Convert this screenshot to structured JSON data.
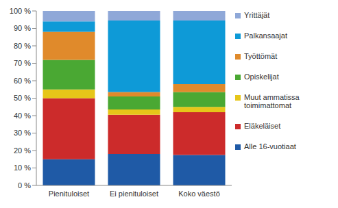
{
  "chart_data": {
    "type": "bar",
    "stacked": true,
    "grid": false,
    "legend": "right",
    "categories": [
      "Pienituloiset",
      "Ei pienituloiset",
      "Koko väestö"
    ],
    "ylim": [
      0,
      100
    ],
    "yticks": [
      {
        "value": 0,
        "label": "0 %"
      },
      {
        "value": 10,
        "label": "10 %"
      },
      {
        "value": 20,
        "label": "20 %"
      },
      {
        "value": 30,
        "label": "30 %"
      },
      {
        "value": 40,
        "label": "40 %"
      },
      {
        "value": 50,
        "label": "50 %"
      },
      {
        "value": 60,
        "label": "60 %"
      },
      {
        "value": 70,
        "label": "70 %"
      },
      {
        "value": 80,
        "label": "80 %"
      },
      {
        "value": 90,
        "label": "90 %"
      },
      {
        "value": 100,
        "label": "100 %"
      }
    ],
    "series": [
      {
        "name": "Alle 16-vuotiaat",
        "color": "#1f5aa6",
        "values": [
          15,
          18,
          17.5
        ]
      },
      {
        "name": "Eläkeläiset",
        "color": "#cc2b2b",
        "values": [
          35,
          22.5,
          24.5
        ]
      },
      {
        "name": "Muut ammatissa toimimattomat",
        "color": "#e6c619",
        "values": [
          5,
          3,
          3
        ]
      },
      {
        "name": "Opiskelijat",
        "color": "#4aa833",
        "values": [
          17,
          7.5,
          8.5
        ]
      },
      {
        "name": "Työttömät",
        "color": "#e08a2b",
        "values": [
          16,
          2.5,
          4.5
        ]
      },
      {
        "name": "Palkansaajat",
        "color": "#0e9ad7",
        "values": [
          6,
          41,
          36.5
        ]
      },
      {
        "name": "Yrittäjät",
        "color": "#8fa8d8",
        "values": [
          6,
          5.5,
          5.5
        ]
      }
    ]
  }
}
